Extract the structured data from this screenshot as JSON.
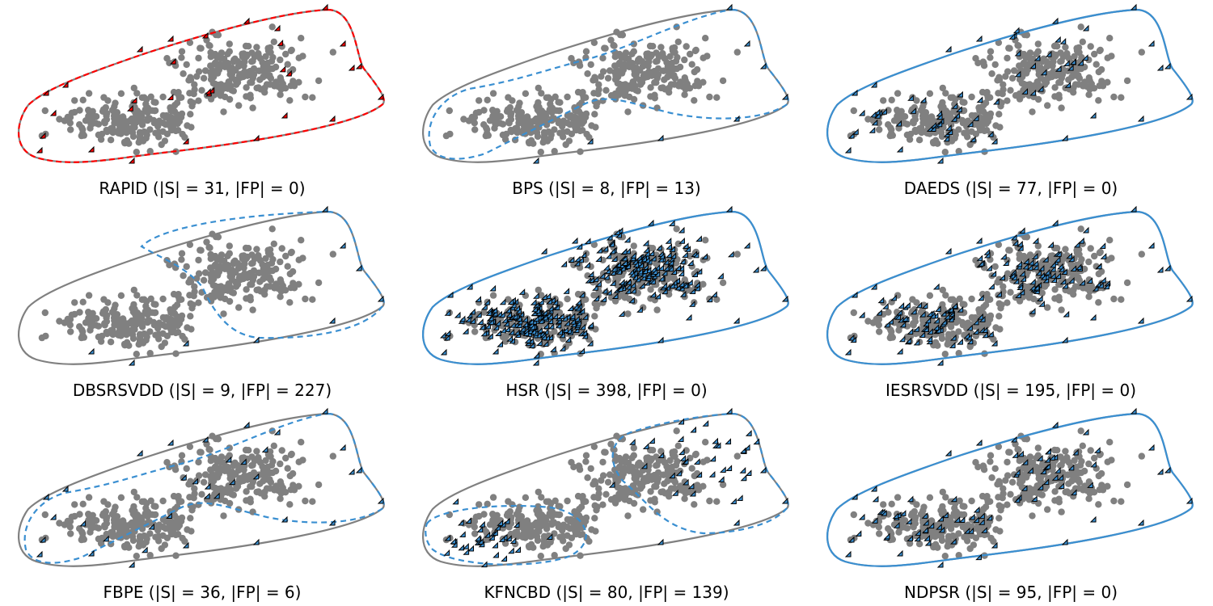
{
  "colors": {
    "background_points": "#808080",
    "support_vectors_rapid": "#ff0000",
    "support_vectors_other": "#3a8fd1",
    "outer_boundary": "#808080",
    "true_boundary": "#6fa1cf",
    "marker_edge": "#000000"
  },
  "chart_data": [
    {
      "type": "scatter",
      "title": "RAPID (|S| = 31, |FP| = 0)",
      "method": "RAPID",
      "S": 31,
      "FP": 0,
      "boundary": "matches",
      "sv_color": "red",
      "sv_pattern": "edge_and_interior_sparse"
    },
    {
      "type": "scatter",
      "title": "BPS (|S| = 8, |FP| = 13)",
      "method": "BPS",
      "S": 8,
      "FP": 13,
      "boundary": "deformed_upper",
      "sv_color": "blue",
      "sv_pattern": "edge_only"
    },
    {
      "type": "scatter",
      "title": "DAEDS (|S| = 77, |FP| = 0)",
      "method": "DAEDS",
      "S": 77,
      "FP": 0,
      "boundary": "matches",
      "sv_color": "blue",
      "sv_pattern": "edge_and_interior"
    },
    {
      "type": "scatter",
      "title": "DBSRSVDD (|S| = 9, |FP| = 227)",
      "method": "DBSRSVDD",
      "S": 9,
      "FP": 227,
      "boundary": "deformed_right_lobe",
      "sv_color": "blue",
      "sv_pattern": "edge_only"
    },
    {
      "type": "scatter",
      "title": "HSR (|S| = 398, |FP| = 0)",
      "method": "HSR",
      "S": 398,
      "FP": 0,
      "boundary": "matches",
      "sv_color": "blue",
      "sv_pattern": "all"
    },
    {
      "type": "scatter",
      "title": "IESRSVDD (|S| = 195, |FP| = 0)",
      "method": "IESRSVDD",
      "S": 195,
      "FP": 0,
      "boundary": "matches",
      "sv_color": "blue",
      "sv_pattern": "many"
    },
    {
      "type": "scatter",
      "title": "FBPE (|S| = 36, |FP| = 6)",
      "method": "FBPE",
      "S": 36,
      "FP": 6,
      "boundary": "deformed_upper",
      "sv_color": "blue",
      "sv_pattern": "edge_and_interior_sparse"
    },
    {
      "type": "scatter",
      "title": "KFNCBD (|S| = 80, |FP| = 139)",
      "method": "KFNCBD",
      "S": 80,
      "FP": 139,
      "boundary": "two_lobes",
      "sv_color": "blue",
      "sv_pattern": "clusters"
    },
    {
      "type": "scatter",
      "title": "NDPSR (|S| = 95, |FP| = 0)",
      "method": "NDPSR",
      "S": 95,
      "FP": 0,
      "boundary": "matches",
      "sv_color": "blue",
      "sv_pattern": "edge_and_interior"
    }
  ]
}
